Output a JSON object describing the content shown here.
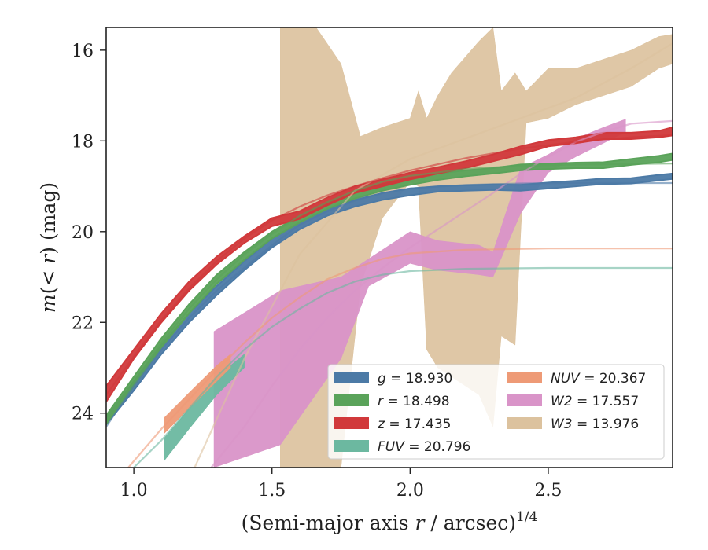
{
  "chart_data": {
    "type": "area",
    "xlabel_main": "(Semi-major axis ",
    "xlabel_r": "r",
    "xlabel_unit": " / arcsec)",
    "xlabel_exp": "1/4",
    "ylabel_m": "m",
    "ylabel_paren": "(< ",
    "ylabel_r": "r",
    "ylabel_close": ") (mag)",
    "xlim": [
      0.9,
      2.95
    ],
    "ylim": [
      25.2,
      15.5
    ],
    "y_inverted": true,
    "grid": false,
    "legend_position": "lower-right",
    "x_ticks": [
      1.0,
      1.5,
      2.0,
      2.5
    ],
    "x_tick_labels": [
      "1.0",
      "1.5",
      "2.0",
      "2.5"
    ],
    "y_ticks": [
      16,
      18,
      20,
      22,
      24
    ],
    "y_tick_labels": [
      "16",
      "18",
      "20",
      "22",
      "24"
    ],
    "series": [
      {
        "name": "g",
        "value_text": "18.930",
        "color": "#4c7aa6",
        "band": [
          [
            0.9,
            24.1,
            24.25
          ],
          [
            1.0,
            23.3,
            23.5
          ],
          [
            1.1,
            22.5,
            22.7
          ],
          [
            1.2,
            21.8,
            22.0
          ],
          [
            1.3,
            21.2,
            21.4
          ],
          [
            1.4,
            20.65,
            20.85
          ],
          [
            1.5,
            20.15,
            20.35
          ],
          [
            1.6,
            19.8,
            19.95
          ],
          [
            1.7,
            19.5,
            19.65
          ],
          [
            1.8,
            19.3,
            19.45
          ],
          [
            1.9,
            19.15,
            19.3
          ],
          [
            2.0,
            19.05,
            19.2
          ],
          [
            2.1,
            19.0,
            19.12
          ],
          [
            2.2,
            18.98,
            19.1
          ],
          [
            2.3,
            18.96,
            19.08
          ],
          [
            2.4,
            18.97,
            19.1
          ],
          [
            2.5,
            18.92,
            19.05
          ],
          [
            2.6,
            18.88,
            19.0
          ],
          [
            2.7,
            18.83,
            18.95
          ],
          [
            2.8,
            18.82,
            18.94
          ],
          [
            2.9,
            18.75,
            18.87
          ],
          [
            2.95,
            18.72,
            18.84
          ]
        ],
        "fit": [
          [
            0.9,
            24.3
          ],
          [
            1.0,
            23.4
          ],
          [
            1.1,
            22.6
          ],
          [
            1.2,
            21.9
          ],
          [
            1.3,
            21.3
          ],
          [
            1.4,
            20.8
          ],
          [
            1.5,
            20.3
          ],
          [
            1.6,
            19.85
          ],
          [
            1.7,
            19.55
          ],
          [
            1.8,
            19.32
          ],
          [
            1.9,
            19.15
          ],
          [
            2.0,
            19.05
          ],
          [
            2.2,
            18.97
          ],
          [
            2.4,
            18.94
          ],
          [
            2.6,
            18.93
          ],
          [
            2.95,
            18.93
          ]
        ]
      },
      {
        "name": "r",
        "value_text": "18.498",
        "color": "#5aa35a",
        "band": [
          [
            0.9,
            24.05,
            24.25
          ],
          [
            1.0,
            23.2,
            23.4
          ],
          [
            1.1,
            22.35,
            22.55
          ],
          [
            1.2,
            21.6,
            21.8
          ],
          [
            1.3,
            20.95,
            21.15
          ],
          [
            1.4,
            20.45,
            20.62
          ],
          [
            1.5,
            20.0,
            20.15
          ],
          [
            1.6,
            19.65,
            19.8
          ],
          [
            1.7,
            19.35,
            19.5
          ],
          [
            1.8,
            19.12,
            19.27
          ],
          [
            1.9,
            18.95,
            19.1
          ],
          [
            2.0,
            18.82,
            18.97
          ],
          [
            2.1,
            18.72,
            18.86
          ],
          [
            2.2,
            18.65,
            18.78
          ],
          [
            2.3,
            18.6,
            18.72
          ],
          [
            2.4,
            18.52,
            18.65
          ],
          [
            2.5,
            18.5,
            18.62
          ],
          [
            2.6,
            18.48,
            18.6
          ],
          [
            2.7,
            18.47,
            18.6
          ],
          [
            2.8,
            18.4,
            18.53
          ],
          [
            2.9,
            18.33,
            18.47
          ],
          [
            2.95,
            18.28,
            18.42
          ]
        ],
        "fit": [
          [
            0.9,
            24.2
          ],
          [
            1.0,
            23.3
          ],
          [
            1.1,
            22.45
          ],
          [
            1.2,
            21.7
          ],
          [
            1.3,
            21.05
          ],
          [
            1.4,
            20.5
          ],
          [
            1.5,
            20.05
          ],
          [
            1.6,
            19.65
          ],
          [
            1.7,
            19.35
          ],
          [
            1.8,
            19.1
          ],
          [
            1.9,
            18.9
          ],
          [
            2.0,
            18.77
          ],
          [
            2.2,
            18.62
          ],
          [
            2.4,
            18.55
          ],
          [
            2.6,
            18.52
          ],
          [
            2.95,
            18.5
          ]
        ]
      },
      {
        "name": "z",
        "value_text": "17.435",
        "color": "#d1393b",
        "band": [
          [
            0.9,
            23.4,
            23.75
          ],
          [
            1.0,
            22.6,
            22.8
          ],
          [
            1.1,
            21.8,
            22.0
          ],
          [
            1.2,
            21.1,
            21.3
          ],
          [
            1.3,
            20.55,
            20.72
          ],
          [
            1.4,
            20.1,
            20.25
          ],
          [
            1.5,
            19.7,
            19.88
          ],
          [
            1.6,
            19.55,
            19.72
          ],
          [
            1.7,
            19.25,
            19.42
          ],
          [
            1.8,
            19.0,
            19.15
          ],
          [
            1.9,
            18.85,
            19.0
          ],
          [
            2.0,
            18.7,
            18.85
          ],
          [
            2.1,
            18.58,
            18.72
          ],
          [
            2.2,
            18.45,
            18.6
          ],
          [
            2.3,
            18.3,
            18.45
          ],
          [
            2.4,
            18.12,
            18.3
          ],
          [
            2.5,
            17.98,
            18.12
          ],
          [
            2.6,
            17.92,
            18.05
          ],
          [
            2.7,
            17.82,
            17.96
          ],
          [
            2.8,
            17.82,
            17.96
          ],
          [
            2.9,
            17.78,
            17.92
          ],
          [
            2.95,
            17.7,
            17.88
          ]
        ],
        "fit": [
          [
            0.9,
            23.6
          ],
          [
            1.0,
            22.75
          ],
          [
            1.1,
            21.95
          ],
          [
            1.2,
            21.25
          ],
          [
            1.3,
            20.65
          ],
          [
            1.4,
            20.15
          ],
          [
            1.5,
            19.75
          ],
          [
            1.6,
            19.45
          ],
          [
            1.7,
            19.2
          ],
          [
            1.8,
            19.0
          ],
          [
            1.9,
            18.82
          ],
          [
            2.0,
            18.65
          ],
          [
            2.2,
            18.38
          ],
          [
            2.4,
            18.17
          ],
          [
            2.6,
            18.02
          ],
          [
            2.8,
            17.92
          ],
          [
            2.95,
            17.87
          ]
        ]
      },
      {
        "name": "FUV",
        "value_text": "20.796",
        "color": "#6cb8a0",
        "band": [
          [
            1.11,
            24.55,
            25.05
          ],
          [
            1.2,
            23.9,
            24.35
          ],
          [
            1.3,
            23.2,
            23.6
          ],
          [
            1.4,
            22.7,
            23.0
          ]
        ],
        "fit": [
          [
            1.0,
            25.2
          ],
          [
            1.1,
            24.6
          ],
          [
            1.2,
            23.9
          ],
          [
            1.3,
            23.2
          ],
          [
            1.4,
            22.6
          ],
          [
            1.5,
            22.1
          ],
          [
            1.6,
            21.7
          ],
          [
            1.7,
            21.35
          ],
          [
            1.8,
            21.1
          ],
          [
            1.9,
            20.95
          ],
          [
            2.0,
            20.87
          ],
          [
            2.2,
            20.82
          ],
          [
            2.5,
            20.8
          ],
          [
            2.95,
            20.8
          ]
        ]
      },
      {
        "name": "NUV",
        "value_text": "20.367",
        "color": "#ee9a76",
        "band": [
          [
            1.11,
            24.1,
            24.45
          ],
          [
            1.2,
            23.55,
            23.9
          ],
          [
            1.3,
            22.95,
            23.3
          ],
          [
            1.35,
            22.7,
            23.0
          ]
        ],
        "fit": [
          [
            0.98,
            25.2
          ],
          [
            1.1,
            24.35
          ],
          [
            1.2,
            23.7
          ],
          [
            1.3,
            23.05
          ],
          [
            1.4,
            22.45
          ],
          [
            1.5,
            21.9
          ],
          [
            1.6,
            21.45
          ],
          [
            1.7,
            21.05
          ],
          [
            1.8,
            20.8
          ],
          [
            1.9,
            20.6
          ],
          [
            2.0,
            20.48
          ],
          [
            2.2,
            20.4
          ],
          [
            2.5,
            20.37
          ],
          [
            2.95,
            20.37
          ]
        ]
      },
      {
        "name": "W2",
        "value_text": "17.557",
        "color": "#d994c8",
        "band": [
          [
            1.29,
            22.2,
            25.2
          ],
          [
            1.53,
            21.3,
            24.7
          ],
          [
            1.75,
            21.0,
            22.8
          ],
          [
            1.85,
            20.6,
            21.2
          ],
          [
            2.0,
            20.0,
            20.7
          ],
          [
            2.1,
            20.2,
            20.85
          ],
          [
            2.25,
            20.3,
            20.95
          ],
          [
            2.3,
            20.45,
            21.0
          ],
          [
            2.4,
            18.6,
            19.6
          ],
          [
            2.5,
            18.3,
            18.7
          ],
          [
            2.6,
            17.95,
            18.35
          ],
          [
            2.7,
            17.7,
            18.05
          ],
          [
            2.78,
            17.52,
            17.8
          ]
        ],
        "fit": [
          [
            1.28,
            25.2
          ],
          [
            1.4,
            24.3
          ],
          [
            1.5,
            23.4
          ],
          [
            1.6,
            22.6
          ],
          [
            1.7,
            21.9
          ],
          [
            1.8,
            21.3
          ],
          [
            1.9,
            20.8
          ],
          [
            2.0,
            20.35
          ],
          [
            2.1,
            19.95
          ],
          [
            2.2,
            19.55
          ],
          [
            2.3,
            19.15
          ],
          [
            2.4,
            18.72
          ],
          [
            2.5,
            18.35
          ],
          [
            2.6,
            18.02
          ],
          [
            2.7,
            17.8
          ],
          [
            2.8,
            17.62
          ],
          [
            2.95,
            17.56
          ]
        ]
      },
      {
        "name": "W3",
        "value_text": "13.976",
        "color": "#dcc29e",
        "band": [
          [
            1.53,
            15.5,
            25.2
          ],
          [
            1.66,
            15.5,
            25.2
          ],
          [
            1.75,
            16.3,
            25.2
          ],
          [
            1.82,
            17.9,
            21.2
          ],
          [
            1.9,
            17.7,
            19.7
          ],
          [
            2.0,
            17.5,
            18.9
          ],
          [
            2.03,
            16.9,
            19.0
          ],
          [
            2.06,
            17.5,
            22.6
          ],
          [
            2.1,
            17.0,
            23.0
          ],
          [
            2.15,
            16.5,
            23.2
          ],
          [
            2.25,
            15.8,
            23.6
          ],
          [
            2.3,
            15.5,
            24.3
          ],
          [
            2.33,
            16.9,
            22.3
          ],
          [
            2.38,
            16.5,
            22.5
          ],
          [
            2.42,
            16.9,
            17.6
          ],
          [
            2.5,
            16.4,
            17.5
          ],
          [
            2.6,
            16.4,
            17.2
          ],
          [
            2.7,
            16.2,
            17.0
          ],
          [
            2.8,
            16.0,
            16.8
          ],
          [
            2.9,
            15.7,
            16.4
          ],
          [
            2.95,
            15.65,
            16.3
          ]
        ],
        "fit": [
          [
            1.22,
            25.2
          ],
          [
            1.4,
            22.8
          ],
          [
            1.6,
            20.5
          ],
          [
            1.8,
            19.1
          ],
          [
            2.0,
            18.4
          ],
          [
            2.2,
            17.95
          ],
          [
            2.4,
            17.5
          ],
          [
            2.6,
            17.05
          ],
          [
            2.8,
            16.4
          ],
          [
            2.95,
            15.85
          ]
        ]
      }
    ]
  }
}
